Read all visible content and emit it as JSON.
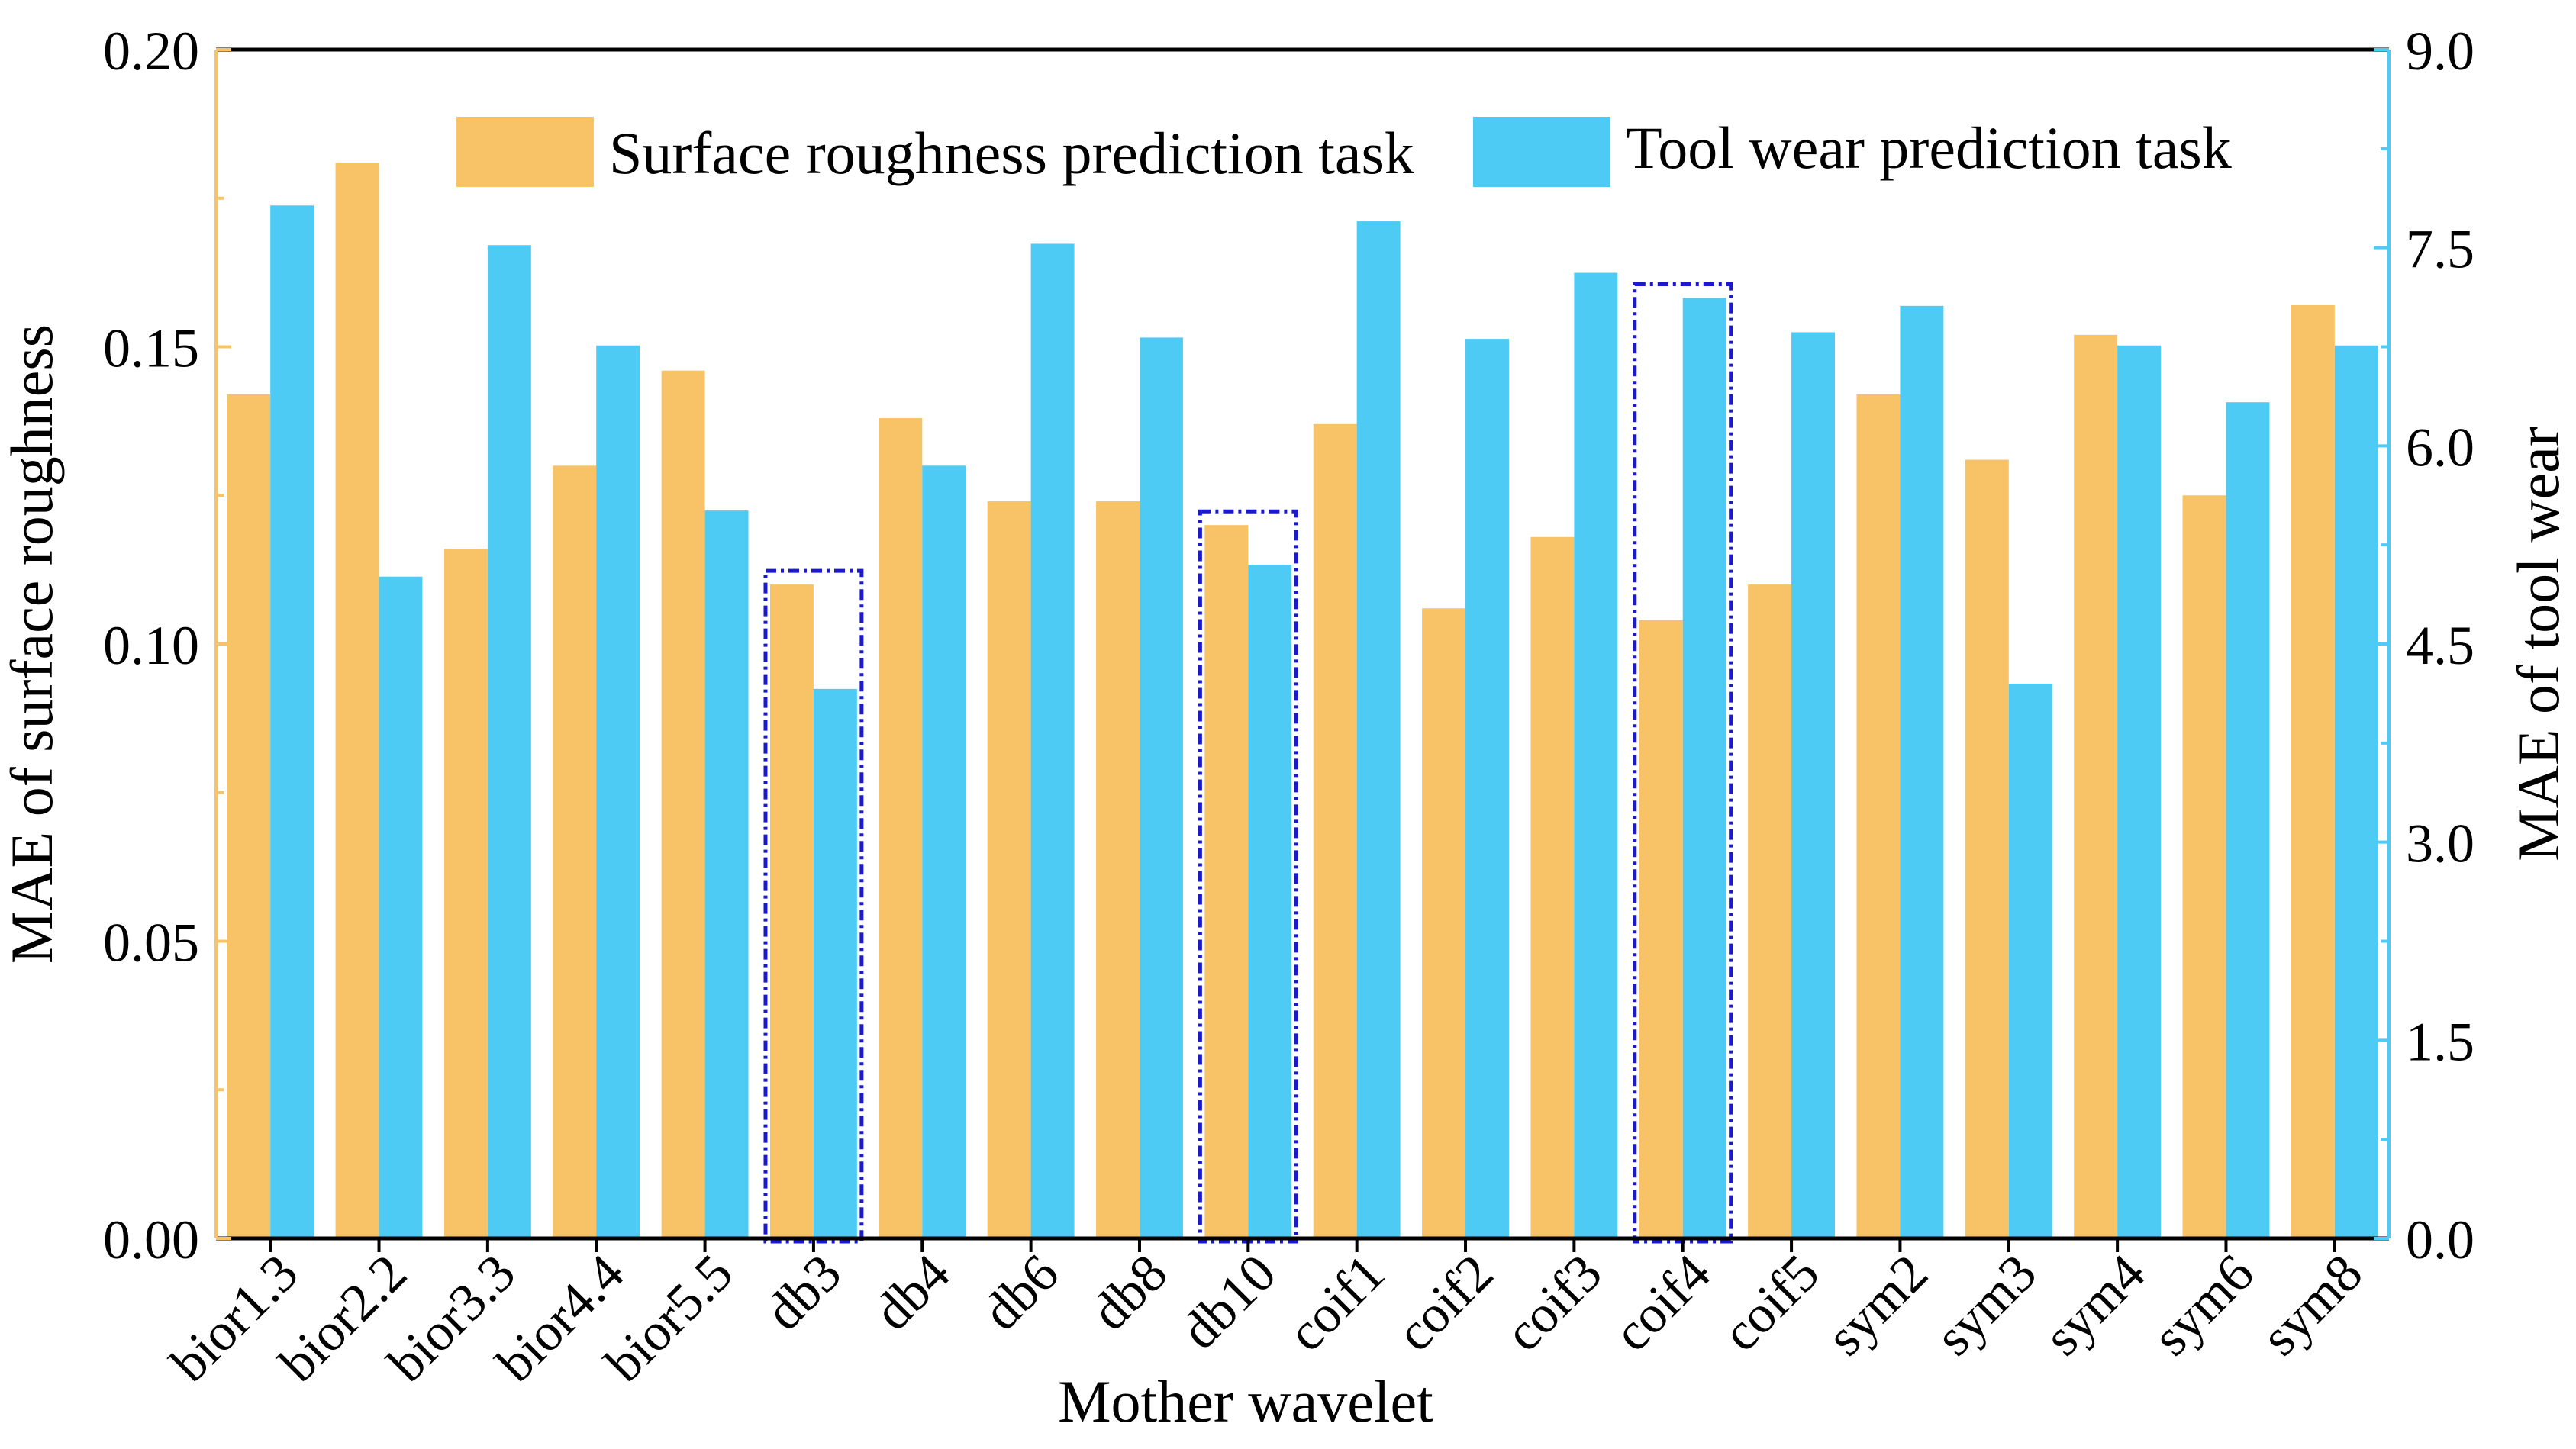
{
  "chart_data": {
    "type": "bar",
    "xlabel": "Mother wavelet",
    "ylabel_left": "MAE of surface roughness",
    "ylabel_right": "MAE of tool wear",
    "ylim_left": [
      0,
      0.2
    ],
    "ylim_right": [
      0,
      9.0
    ],
    "yticks_left": [
      "0.00",
      "0.05",
      "0.10",
      "0.15",
      "0.20"
    ],
    "yticks_right": [
      "0.0",
      "1.5",
      "3.0",
      "4.5",
      "6.0",
      "7.5",
      "9.0"
    ],
    "legend_position": "top",
    "categories": [
      "bior1.3",
      "bior2.2",
      "bior3.3",
      "bior4.4",
      "bior5.5",
      "db3",
      "db4",
      "db6",
      "db8",
      "db10",
      "coif1",
      "coif2",
      "coif3",
      "coif4",
      "coif5",
      "sym2",
      "sym3",
      "sym4",
      "sym6",
      "sym8"
    ],
    "series": [
      {
        "name": "Surface roughness prediction task",
        "axis": "left",
        "color": "#F8C367",
        "values": [
          0.142,
          0.181,
          0.116,
          0.13,
          0.146,
          0.11,
          0.138,
          0.124,
          0.124,
          0.12,
          0.137,
          0.106,
          0.118,
          0.104,
          0.11,
          0.142,
          0.131,
          0.152,
          0.125,
          0.157
        ]
      },
      {
        "name": "Tool wear prediction task",
        "axis": "right",
        "color": "#4DCBF5",
        "values": [
          7.82,
          5.01,
          7.52,
          6.76,
          5.51,
          4.16,
          5.85,
          7.53,
          6.82,
          5.1,
          7.7,
          6.81,
          7.31,
          7.12,
          6.86,
          7.06,
          4.2,
          6.76,
          6.33,
          6.76
        ]
      }
    ],
    "highlighted_categories": [
      "db3",
      "db10",
      "coif4"
    ],
    "axis_color_left": "#F8C367",
    "axis_color_right": "#4DCBF5",
    "highlight_color": "#1A1ACC"
  }
}
